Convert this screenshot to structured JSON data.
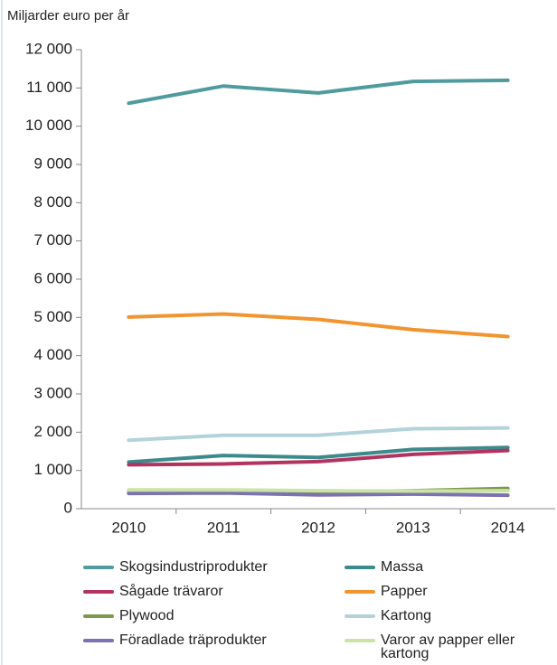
{
  "chart_data": {
    "type": "line",
    "y_label": "Miljarder euro per år",
    "categories": [
      "2010",
      "2011",
      "2012",
      "2013",
      "2014"
    ],
    "ylim": [
      0,
      12000
    ],
    "yticks": [
      0,
      {
        "value": 1000,
        "label": "1 000"
      },
      {
        "value": 2000,
        "label": "2 000"
      },
      {
        "value": 3000,
        "label": "3 000"
      },
      {
        "value": 4000,
        "label": "4 000"
      },
      {
        "value": 5000,
        "label": "5 000"
      },
      {
        "value": 6000,
        "label": "6 000"
      },
      {
        "value": 7000,
        "label": "7 000"
      },
      {
        "value": 8000,
        "label": "8 000"
      },
      {
        "value": 9000,
        "label": "9 000"
      },
      {
        "value": 10000,
        "label": "10 000"
      },
      {
        "value": 11000,
        "label": "11 000"
      },
      {
        "value": 12000,
        "label": "12 000"
      }
    ],
    "grid": false,
    "series": [
      {
        "name": "Skogsindustriprodukter",
        "color": "#4f9b9e",
        "values": [
          10600,
          11050,
          10870,
          11170,
          11200
        ]
      },
      {
        "name": "Massa",
        "color": "#3d8a8c",
        "values": [
          1220,
          1390,
          1340,
          1550,
          1600
        ]
      },
      {
        "name": "Sågade trävaror",
        "color": "#b2335f",
        "values": [
          1150,
          1170,
          1230,
          1420,
          1520
        ]
      },
      {
        "name": "Papper",
        "color": "#f29430",
        "values": [
          5010,
          5090,
          4950,
          4680,
          4500
        ]
      },
      {
        "name": "Plywood",
        "color": "#7c9a4c",
        "values": [
          420,
          440,
          430,
          470,
          530
        ]
      },
      {
        "name": "Kartong",
        "color": "#b3d3da",
        "values": [
          1790,
          1920,
          1920,
          2090,
          2110
        ]
      },
      {
        "name": "Föradlade träprodukter",
        "color": "#7a72b2",
        "values": [
          400,
          410,
          360,
          380,
          350
        ]
      },
      {
        "name": "Varor av papper eller kartong",
        "color": "#cbe3a4",
        "values": [
          490,
          490,
          470,
          460,
          470
        ]
      }
    ]
  }
}
